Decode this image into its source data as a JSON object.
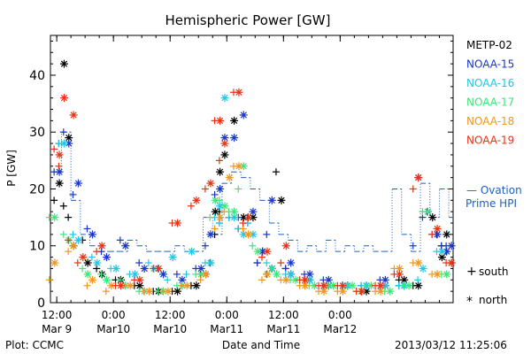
{
  "chart_data": {
    "type": "scatter",
    "title": "Hemispheric Power [GW]",
    "ylabel": "P [GW]",
    "xlabel": "Date and Time",
    "ylim": [
      0,
      47
    ],
    "xlim": [
      "2013-03-09 10:40",
      "2013-03-12 23:55"
    ],
    "y_ticks": [
      0,
      10,
      20,
      30,
      40
    ],
    "x_ticks": [
      {
        "t": "2013-03-09 12:00",
        "line1": "12:00",
        "line2": "Mar 9"
      },
      {
        "t": "2013-03-10 00:00",
        "line1": "0:00",
        "line2": "Mar10"
      },
      {
        "t": "2013-03-10 12:00",
        "line1": "12:00",
        "line2": "Mar10"
      },
      {
        "t": "2013-03-11 00:00",
        "line1": "0:00",
        "line2": "Mar11"
      },
      {
        "t": "2013-03-11 12:00",
        "line1": "12:00",
        "line2": "Mar11"
      },
      {
        "t": "2013-03-12 00:00",
        "line1": "0:00",
        "line2": "Mar12"
      }
    ],
    "grid": false,
    "legend_position": "right",
    "plot_credit": "Plot: CCMC",
    "timestamp": "2013/03/12 11:25:06",
    "marker_legend": [
      {
        "symbol": "+",
        "label": "south"
      },
      {
        "symbol": "*",
        "label": "north"
      }
    ],
    "ovation": {
      "label_line1": "— Ovation",
      "label_line2": "Prime HPI",
      "color": "#1f5fbf",
      "x": [
        "2013-03-09 11:00",
        "2013-03-09 13:00",
        "2013-03-09 15:00",
        "2013-03-09 17:00",
        "2013-03-09 19:00",
        "2013-03-09 21:00",
        "2013-03-09 23:00",
        "2013-03-10 01:00",
        "2013-03-10 03:00",
        "2013-03-10 05:00",
        "2013-03-10 07:00",
        "2013-03-10 09:00",
        "2013-03-10 11:00",
        "2013-03-10 13:00",
        "2013-03-10 15:00",
        "2013-03-10 17:00",
        "2013-03-10 19:00",
        "2013-03-10 21:00",
        "2013-03-10 23:00",
        "2013-03-11 01:00",
        "2013-03-11 03:00",
        "2013-03-11 05:00",
        "2013-03-11 07:00",
        "2013-03-11 09:00",
        "2013-03-11 11:00",
        "2013-03-11 13:00",
        "2013-03-11 15:00",
        "2013-03-11 17:00",
        "2013-03-11 19:00",
        "2013-03-11 21:00",
        "2013-03-11 23:00",
        "2013-03-12 01:00",
        "2013-03-12 03:00",
        "2013-03-12 05:00",
        "2013-03-12 07:00",
        "2013-03-12 09:00",
        "2013-03-12 11:00",
        "2013-03-12 13:00",
        "2013-03-12 15:00",
        "2013-03-12 17:00",
        "2013-03-12 19:00",
        "2013-03-12 21:00",
        "2013-03-12 23:00"
      ],
      "y": [
        23,
        30,
        18,
        12,
        10,
        9,
        9,
        9,
        11,
        10,
        9,
        9,
        9,
        10,
        9,
        9,
        15,
        12,
        21,
        23,
        22,
        20,
        18,
        14,
        12,
        11,
        9,
        10,
        9,
        11,
        9,
        10,
        9,
        10,
        9,
        9,
        20,
        12,
        9,
        21,
        15,
        20,
        15
      ]
    },
    "series": [
      {
        "name": "METP-02",
        "color": "#000000",
        "x": [
          "2013-03-09 12:00",
          "2013-03-09 13:00",
          "2013-03-09 14:00",
          "2013-03-09 15:00",
          "2013-03-09 18:00",
          "2013-03-09 21:00",
          "2013-03-10 01:00",
          "2013-03-10 05:00",
          "2013-03-10 09:00",
          "2013-03-10 13:00",
          "2013-03-10 17:00",
          "2013-03-10 19:00",
          "2013-03-10 21:00",
          "2013-03-10 22:00",
          "2013-03-10 23:00",
          "2013-03-11 01:00",
          "2013-03-11 03:00",
          "2013-03-11 05:00",
          "2013-03-11 07:00",
          "2013-03-11 09:00",
          "2013-03-11 11:00",
          "2013-03-11 13:00",
          "2013-03-11 17:00",
          "2013-03-11 21:00",
          "2013-03-12 01:00",
          "2013-03-12 05:00",
          "2013-03-12 09:00",
          "2013-03-12 13:00",
          "2013-03-12 16:00",
          "2013-03-12 19:00",
          "2013-03-12 21:00",
          "2013-03-12 22:00",
          "2013-03-12 23:00"
        ],
        "south": [
          18,
          28,
          17,
          15,
          11,
          6,
          4,
          3,
          2,
          2,
          3,
          5,
          7,
          12,
          16,
          15,
          13,
          15,
          7,
          5,
          23,
          6,
          4,
          3,
          3,
          2,
          3,
          4,
          3,
          16,
          12,
          10,
          9
        ],
        "north": [
          21,
          42,
          29,
          10,
          7,
          5,
          4,
          3,
          2,
          2,
          3,
          5,
          16,
          23,
          26,
          32,
          15,
          15,
          9,
          6,
          18,
          5,
          4,
          3,
          3,
          2,
          3,
          4,
          3,
          15,
          8,
          12,
          7
        ]
      },
      {
        "name": "NOAA-15",
        "color": "#1a35cc",
        "x": [
          "2013-03-09 12:00",
          "2013-03-09 14:00",
          "2013-03-09 16:00",
          "2013-03-09 19:00",
          "2013-03-09 22:00",
          "2013-03-10 02:00",
          "2013-03-10 06:00",
          "2013-03-10 10:00",
          "2013-03-10 14:00",
          "2013-03-10 18:00",
          "2013-03-10 20:00",
          "2013-03-10 22:00",
          "2013-03-10 23:00",
          "2013-03-11 01:00",
          "2013-03-11 03:00",
          "2013-03-11 05:00",
          "2013-03-11 07:00",
          "2013-03-11 09:00",
          "2013-03-11 13:00",
          "2013-03-11 17:00",
          "2013-03-11 21:00",
          "2013-03-12 01:00",
          "2013-03-12 05:00",
          "2013-03-12 09:00",
          "2013-03-12 13:00",
          "2013-03-12 16:00",
          "2013-03-12 18:00",
          "2013-03-12 20:00",
          "2013-03-12 22:00",
          "2013-03-12 23:00"
        ],
        "south": [
          23,
          30,
          19,
          13,
          9,
          11,
          7,
          6,
          5,
          6,
          10,
          19,
          14,
          15,
          15,
          14,
          7,
          12,
          6,
          5,
          4,
          3,
          3,
          4,
          3,
          10,
          15,
          12,
          10,
          10
        ],
        "north": [
          23,
          28,
          21,
          12,
          8,
          10,
          6,
          5,
          4,
          6,
          12,
          20,
          29,
          29,
          33,
          16,
          9,
          18,
          7,
          5,
          4,
          3,
          3,
          4,
          3,
          22,
          16,
          12,
          9,
          10
        ]
      },
      {
        "name": "NOAA-16",
        "color": "#1ec8e6",
        "x": [
          "2013-03-09 13:00",
          "2013-03-09 16:00",
          "2013-03-09 20:00",
          "2013-03-10 00:00",
          "2013-03-10 04:00",
          "2013-03-10 08:00",
          "2013-03-10 12:00",
          "2013-03-10 16:00",
          "2013-03-10 20:00",
          "2013-03-10 22:00",
          "2013-03-10 23:00",
          "2013-03-11 01:00",
          "2013-03-11 03:00",
          "2013-03-11 05:00",
          "2013-03-11 09:00",
          "2013-03-11 13:00",
          "2013-03-11 17:00",
          "2013-03-11 21:00",
          "2013-03-12 01:00",
          "2013-03-12 05:00",
          "2013-03-12 09:00",
          "2013-03-12 13:00",
          "2013-03-12 17:00",
          "2013-03-12 21:00"
        ],
        "south": [
          28,
          12,
          8,
          6,
          5,
          7,
          4,
          5,
          7,
          15,
          14,
          15,
          13,
          14,
          7,
          5,
          4,
          3,
          3,
          3,
          3,
          3,
          4,
          9
        ],
        "north": [
          28,
          11,
          7,
          6,
          5,
          6,
          8,
          9,
          7,
          17,
          36,
          15,
          12,
          12,
          6,
          5,
          4,
          3,
          3,
          3,
          3,
          3,
          6,
          9
        ]
      },
      {
        "name": "NOAA-17",
        "color": "#3ce67a",
        "x": [
          "2013-03-09 11:00",
          "2013-03-09 14:00",
          "2013-03-09 18:00",
          "2013-03-09 22:00",
          "2013-03-10 02:00",
          "2013-03-10 06:00",
          "2013-03-10 10:00",
          "2013-03-10 14:00",
          "2013-03-10 18:00",
          "2013-03-10 21:00",
          "2013-03-10 23:00",
          "2013-03-11 01:00",
          "2013-03-11 03:00",
          "2013-03-11 06:00",
          "2013-03-11 10:00",
          "2013-03-11 14:00",
          "2013-03-11 18:00",
          "2013-03-11 22:00",
          "2013-03-12 02:00",
          "2013-03-12 06:00",
          "2013-03-12 10:00",
          "2013-03-12 14:00",
          "2013-03-12 18:00",
          "2013-03-12 22:00"
        ],
        "south": [
          15,
          12,
          6,
          5,
          4,
          2,
          2,
          3,
          5,
          15,
          18,
          16,
          20,
          10,
          6,
          4,
          3,
          3,
          3,
          3,
          2,
          3,
          16,
          5
        ],
        "north": [
          15,
          11,
          5,
          4,
          3,
          2,
          2,
          3,
          5,
          18,
          17,
          16,
          24,
          9,
          5,
          4,
          3,
          3,
          3,
          3,
          2,
          3,
          16,
          5
        ]
      },
      {
        "name": "NOAA-18",
        "color": "#f0961e",
        "x": [
          "2013-03-09 11:00",
          "2013-03-09 15:00",
          "2013-03-09 19:00",
          "2013-03-09 23:00",
          "2013-03-10 03:00",
          "2013-03-10 07:00",
          "2013-03-10 11:00",
          "2013-03-10 15:00",
          "2013-03-10 19:00",
          "2013-03-10 22:00",
          "2013-03-11 00:00",
          "2013-03-11 02:00",
          "2013-03-11 04:00",
          "2013-03-11 08:00",
          "2013-03-11 12:00",
          "2013-03-11 16:00",
          "2013-03-11 20:00",
          "2013-03-12 00:00",
          "2013-03-12 04:00",
          "2013-03-12 08:00",
          "2013-03-12 12:00",
          "2013-03-12 16:00",
          "2013-03-12 20:00"
        ],
        "south": [
          4,
          9,
          3,
          2,
          3,
          2,
          2,
          3,
          4,
          13,
          16,
          24,
          13,
          4,
          4,
          3,
          2,
          2,
          2,
          2,
          6,
          7,
          5
        ],
        "north": [
          7,
          10,
          4,
          3,
          3,
          2,
          2,
          3,
          5,
          15,
          22,
          24,
          12,
          5,
          4,
          3,
          2,
          2,
          2,
          2,
          6,
          7,
          5
        ]
      },
      {
        "name": "NOAA-19",
        "color": "#e63214",
        "x": [
          "2013-03-09 12:00",
          "2013-03-09 13:00",
          "2013-03-09 15:00",
          "2013-03-09 17:00",
          "2013-03-09 21:00",
          "2013-03-10 01:00",
          "2013-03-10 05:00",
          "2013-03-10 09:00",
          "2013-03-10 13:00",
          "2013-03-10 17:00",
          "2013-03-10 20:00",
          "2013-03-10 22:00",
          "2013-03-10 23:00",
          "2013-03-11 02:00",
          "2013-03-11 04:00",
          "2013-03-11 08:00",
          "2013-03-11 12:00",
          "2013-03-11 16:00",
          "2013-03-11 20:00",
          "2013-03-12 00:00",
          "2013-03-12 04:00",
          "2013-03-12 08:00",
          "2013-03-12 12:00",
          "2013-03-12 16:00",
          "2013-03-12 20:00",
          "2013-03-12 23:00"
        ],
        "south": [
          27,
          24,
          11,
          7,
          9,
          3,
          4,
          6,
          14,
          17,
          20,
          32,
          25,
          37,
          14,
          8,
          7,
          4,
          3,
          3,
          2,
          3,
          5,
          20,
          12,
          7
        ],
        "north": [
          26,
          36,
          33,
          8,
          10,
          3,
          4,
          6,
          14,
          18,
          21,
          32,
          28,
          37,
          15,
          9,
          10,
          4,
          3,
          3,
          2,
          3,
          5,
          22,
          13,
          7
        ]
      }
    ]
  }
}
